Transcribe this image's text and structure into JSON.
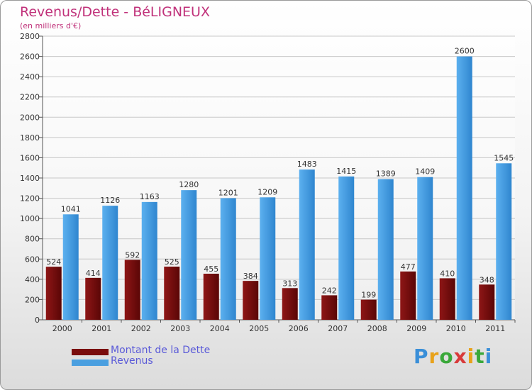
{
  "header": {
    "title": "Revenus/Dette - BéLIGNEUX",
    "subtitle": "(en milliers d'€)"
  },
  "colors": {
    "debt": "#7a0d0d",
    "revenue": "#4a9fe0",
    "title": "#c0317a",
    "legend_text": "#5a5ad8"
  },
  "legend": {
    "debt_label": "Montant de la Dette",
    "revenue_label": "Revenus"
  },
  "logo": {
    "text": "Proxiti"
  },
  "chart_data": {
    "type": "bar",
    "title": "Revenus/Dette - BéLIGNEUX",
    "subtitle": "(en milliers d'€)",
    "xlabel": "",
    "ylabel": "",
    "categories": [
      "2000",
      "2001",
      "2002",
      "2003",
      "2004",
      "2005",
      "2006",
      "2007",
      "2008",
      "2009",
      "2010",
      "2011"
    ],
    "series": [
      {
        "name": "Montant de la Dette",
        "values": [
          524,
          414,
          592,
          525,
          455,
          384,
          313,
          242,
          199,
          477,
          410,
          348
        ]
      },
      {
        "name": "Revenus",
        "values": [
          1041,
          1126,
          1163,
          1280,
          1201,
          1209,
          1483,
          1415,
          1389,
          1409,
          2600,
          1545
        ]
      }
    ],
    "ylim": [
      0,
      2800
    ],
    "yticks": [
      0,
      200,
      400,
      600,
      800,
      1000,
      1200,
      1400,
      1600,
      1800,
      2000,
      2200,
      2400,
      2600,
      2800
    ],
    "grid": true,
    "legend_position": "bottom-left"
  }
}
